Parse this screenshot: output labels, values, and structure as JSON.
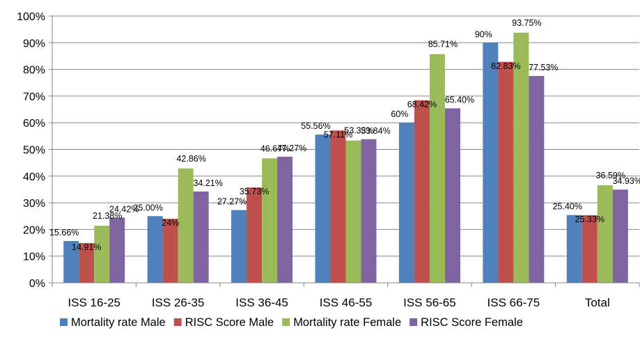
{
  "chart_data": {
    "type": "bar",
    "title": "",
    "xlabel": "",
    "ylabel": "",
    "ylim": [
      0,
      100
    ],
    "yticks": [
      "0%",
      "10%",
      "20%",
      "30%",
      "40%",
      "50%",
      "60%",
      "70%",
      "80%",
      "90%",
      "100%"
    ],
    "grid": true,
    "legend_position": "bottom",
    "categories": [
      "ISS 16-25",
      "ISS 26-35",
      "ISS 36-45",
      "ISS 46-55",
      "ISS 56-65",
      "ISS 66-75",
      "Total"
    ],
    "series": [
      {
        "name": "Mortality rate Male",
        "color": "#4F81BD",
        "values": [
          15.66,
          25.0,
          27.27,
          55.56,
          60,
          90,
          25.4
        ],
        "labels": [
          "15.66%",
          "25.00%",
          "27.27%",
          "55.56%",
          "60%",
          "90%",
          "25.40%"
        ]
      },
      {
        "name": "RISC Score Male",
        "color": "#C0504D",
        "values": [
          14.91,
          24,
          35.73,
          57.11,
          68.42,
          82.83,
          25.33
        ],
        "labels": [
          "14.91%",
          "24%",
          "35.73%",
          "57.11%",
          "68.42%",
          "82.83%",
          "25.33%"
        ]
      },
      {
        "name": "Mortality rate Female",
        "color": "#9BBB59",
        "values": [
          21.38,
          42.86,
          46.67,
          53.33,
          85.71,
          93.75,
          36.59
        ],
        "labels": [
          "21.38%",
          "42.86%",
          "46.67%",
          "53.33%",
          "85.71%",
          "93.75%",
          "36.59%"
        ]
      },
      {
        "name": "RISC Score Female",
        "color": "#8064A2",
        "values": [
          24.42,
          34.21,
          47.27,
          53.84,
          65.4,
          77.53,
          34.93
        ],
        "labels": [
          "24.42%",
          "34.21%",
          "47.27%",
          "53.84%",
          "65.40%",
          "77.53%",
          "34.93%"
        ]
      }
    ]
  }
}
